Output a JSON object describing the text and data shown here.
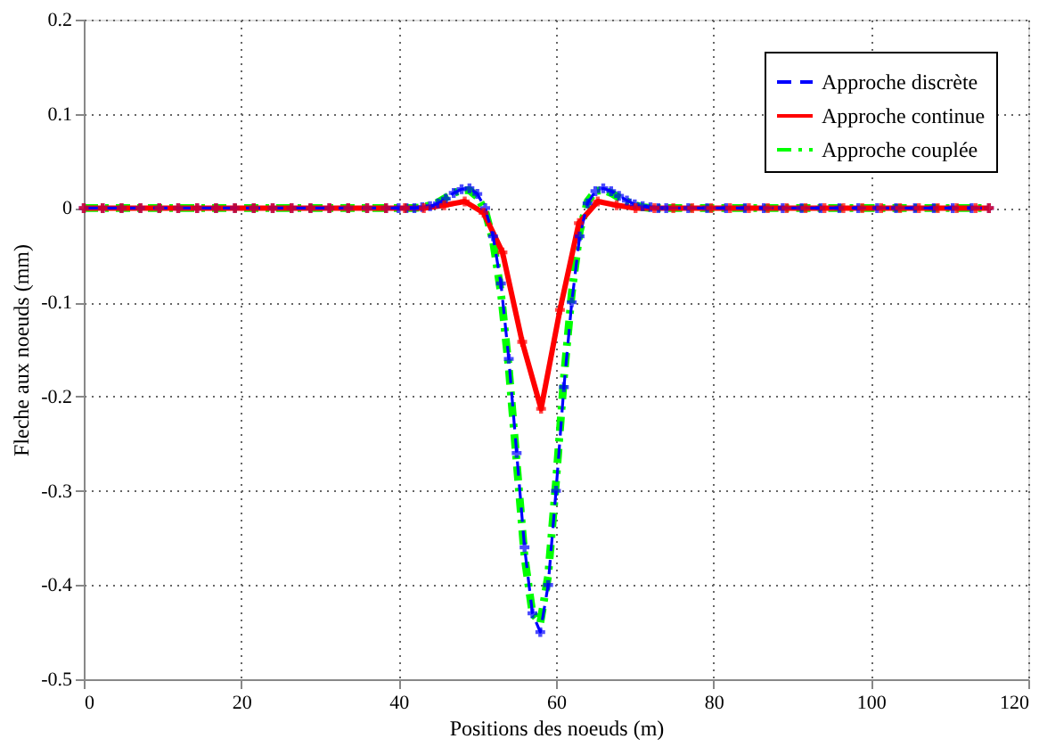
{
  "chart_data": {
    "type": "line",
    "xlabel": "Positions des noeuds (m)",
    "ylabel": "Fleche aux noeuds (mm)",
    "xlim": [
      0,
      120
    ],
    "ylim": [
      -0.5,
      0.2
    ],
    "xticks": [
      0,
      20,
      40,
      60,
      80,
      100,
      120
    ],
    "yticks": [
      -0.5,
      -0.4,
      -0.3,
      -0.2,
      -0.1,
      0,
      0.1,
      0.2
    ],
    "grid": true,
    "legend": "top right",
    "series": [
      {
        "name": "Approche discrète",
        "color": "#0000ff",
        "line_style": "dashed",
        "marker": "cross",
        "x": [
          0,
          2.4,
          4.8,
          7.2,
          9.6,
          12,
          14.4,
          16.8,
          19.2,
          21.6,
          24,
          26.4,
          28.8,
          31.2,
          33.6,
          36,
          38.4,
          40,
          41,
          42,
          43,
          44,
          45,
          46,
          47,
          48,
          49,
          50,
          51,
          52,
          53,
          54,
          55,
          56,
          57,
          58,
          59,
          60,
          61,
          62,
          63,
          64,
          65,
          66,
          67,
          68,
          69,
          70,
          71,
          72,
          73,
          74,
          76.8,
          79.2,
          81.6,
          84,
          86.4,
          88.8,
          91.2,
          93.6,
          96,
          98.4,
          100.8,
          103.2,
          105.6,
          108,
          110.4,
          112.8,
          115
        ],
        "values": [
          0,
          0,
          0,
          0,
          0,
          0,
          0,
          0,
          0,
          0,
          0,
          0,
          0,
          0,
          0,
          0,
          0,
          0,
          0,
          0,
          0.001,
          0.002,
          0.005,
          0.01,
          0.016,
          0.02,
          0.021,
          0.015,
          0,
          -0.03,
          -0.08,
          -0.16,
          -0.26,
          -0.36,
          -0.43,
          -0.45,
          -0.4,
          -0.3,
          -0.19,
          -0.1,
          -0.03,
          0.005,
          0.018,
          0.021,
          0.018,
          0.013,
          0.008,
          0.004,
          0.002,
          0.001,
          0,
          0,
          0,
          0,
          0,
          0,
          0,
          0,
          0,
          0,
          0,
          0,
          0,
          0,
          0,
          0,
          0,
          0,
          0
        ]
      },
      {
        "name": "Approche continue",
        "color": "#ff0000",
        "line_style": "solid",
        "marker": "cross",
        "x": [
          0,
          2.4,
          4.8,
          7.2,
          9.6,
          12,
          14.4,
          16.8,
          19.2,
          21.6,
          24,
          26.4,
          28.8,
          31.2,
          33.6,
          36,
          38.4,
          40.8,
          43.2,
          45.8,
          48.4,
          50.8,
          53.2,
          55.7,
          58.1,
          60.5,
          62.9,
          65.3,
          67.7,
          70.1,
          72.5,
          74.9,
          77.3,
          79.7,
          82.1,
          84.5,
          86.9,
          89.3,
          91.7,
          94.1,
          96.5,
          98.9,
          101.3,
          103.7,
          106.1,
          108.5,
          110.9,
          113.3,
          115
        ],
        "values": [
          0,
          0,
          0,
          0,
          0,
          0,
          0,
          0,
          0,
          0,
          0,
          0,
          0,
          0,
          0,
          0,
          0,
          0,
          0,
          0.003,
          0.007,
          -0.005,
          -0.047,
          -0.142,
          -0.213,
          -0.108,
          -0.016,
          0.007,
          0.003,
          0,
          0,
          0,
          0,
          0,
          0,
          0,
          0,
          0,
          0,
          0,
          0,
          0,
          0,
          0,
          0,
          0,
          0,
          0,
          0
        ]
      },
      {
        "name": "Approche couplée",
        "color": "#00ff00",
        "line_style": "dashdot",
        "marker": "none",
        "x": [
          0,
          10,
          20,
          30,
          40,
          42,
          43,
          44,
          45,
          46,
          47,
          48,
          49,
          50,
          51,
          52,
          53,
          54,
          55,
          56,
          57,
          58,
          59,
          60,
          61,
          62,
          63,
          64,
          65,
          66,
          67,
          68,
          69,
          70,
          71,
          72,
          74,
          80,
          90,
          100,
          110,
          115
        ],
        "values": [
          0,
          0,
          0,
          0,
          0,
          0,
          0.001,
          0.003,
          0.006,
          0.011,
          0.016,
          0.019,
          0.019,
          0.012,
          -0.003,
          -0.035,
          -0.09,
          -0.17,
          -0.27,
          -0.37,
          -0.43,
          -0.44,
          -0.39,
          -0.29,
          -0.18,
          -0.09,
          -0.025,
          0.007,
          0.018,
          0.019,
          0.016,
          0.011,
          0.007,
          0.003,
          0.001,
          0,
          0,
          0,
          0,
          0,
          0,
          0
        ]
      }
    ]
  }
}
